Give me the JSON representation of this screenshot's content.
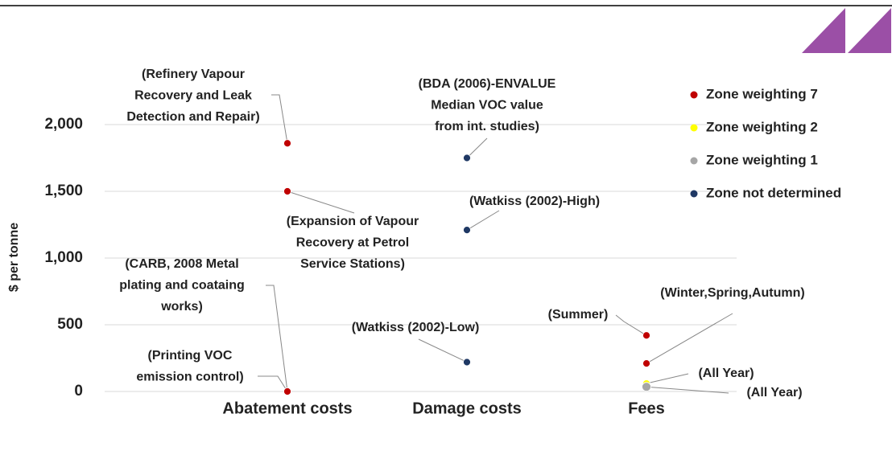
{
  "chart_data": {
    "type": "scatter",
    "y_label": "$ per tonne",
    "categories": [
      "Abatement costs",
      "Damage costs",
      "Fees"
    ],
    "ylim": [
      0,
      2000
    ],
    "yticks": [
      0,
      500,
      {
        "value": 1000,
        "label": "1,000"
      },
      {
        "value": 1500,
        "label": "1,500"
      },
      {
        "value": 2000,
        "label": "2,000"
      }
    ],
    "grid": true,
    "legend": "right",
    "series": [
      {
        "name": "Zone weighting 7",
        "color": "#c00000",
        "x": [
          "Abatement costs",
          "Abatement costs",
          "Abatement costs",
          "Abatement costs",
          "Fees",
          "Fees"
        ],
        "values": [
          1860,
          1500,
          0,
          0,
          420,
          210
        ],
        "labels": [
          [
            "(Refinery Vapour",
            "Recovery and Leak",
            "Detection and Repair)"
          ],
          [
            "(Expansion of Vapour",
            "Recovery at Petrol",
            "Service Stations)"
          ],
          [
            "(CARB, 2008 Metal",
            "plating and coataing",
            "works)"
          ],
          [
            "(Printing VOC",
            "emission control)"
          ],
          [
            "(Summer)"
          ],
          [
            "(Winter,Spring,Autumn)"
          ]
        ]
      },
      {
        "name": "Zone weighting 2",
        "color": "#ffff00",
        "x": [
          "Fees"
        ],
        "values": [
          60
        ],
        "labels": [
          [
            "(All Year)"
          ]
        ]
      },
      {
        "name": "Zone weighting 1",
        "color": "#a6a6a6",
        "x": [
          "Fees"
        ],
        "values": [
          35
        ],
        "labels": [
          [
            "(All Year)"
          ]
        ]
      },
      {
        "name": "Zone not determined",
        "color": "#1f3864",
        "x": [
          "Damage costs",
          "Damage costs",
          "Damage costs"
        ],
        "values": [
          1750,
          1210,
          220
        ],
        "labels": [
          [
            "(BDA (2006)-ENVALUE",
            "Median VOC value",
            "from int. studies)"
          ],
          [
            "(Watkiss (2002)-High)"
          ],
          [
            "(Watkiss (2002)-Low)"
          ]
        ]
      }
    ]
  }
}
